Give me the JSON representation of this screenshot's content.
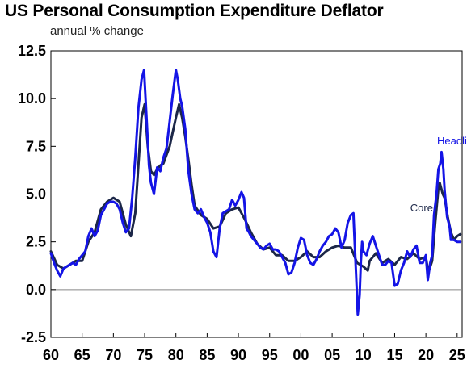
{
  "title": "US Personal Consumption Expenditure Deflator",
  "subtitle": "annual % change",
  "chart_data": {
    "type": "line",
    "xlim": [
      1960,
      2025.8
    ],
    "ylim": [
      -2.5,
      12.5
    ],
    "yticks": [
      "12.5",
      "10.0",
      "7.5",
      "5.0",
      "2.5",
      "0.0",
      "-2.5"
    ],
    "ytick_values": [
      12.5,
      10.0,
      7.5,
      5.0,
      2.5,
      0.0,
      -2.5
    ],
    "xticks": [
      "60",
      "65",
      "70",
      "75",
      "80",
      "85",
      "90",
      "95",
      "00",
      "05",
      "10",
      "15",
      "20",
      "25"
    ],
    "xtick_values": [
      1960,
      1965,
      1970,
      1975,
      1980,
      1985,
      1990,
      1995,
      2000,
      2005,
      2010,
      2015,
      2020,
      2025
    ],
    "zero_line": true,
    "grid": false,
    "series": [
      {
        "name": "Headline",
        "color": "#1414e6",
        "x": [
          1960.0,
          1960.5,
          1961.0,
          1961.5,
          1962.0,
          1962.5,
          1963.0,
          1963.5,
          1964.0,
          1964.5,
          1965.0,
          1965.5,
          1966.0,
          1966.5,
          1967.0,
          1967.5,
          1968.0,
          1968.5,
          1969.0,
          1969.5,
          1970.0,
          1970.5,
          1971.0,
          1971.5,
          1972.0,
          1972.5,
          1973.0,
          1973.5,
          1974.0,
          1974.5,
          1974.9,
          1975.3,
          1975.7,
          1976.0,
          1976.5,
          1977.0,
          1977.5,
          1978.0,
          1978.5,
          1979.0,
          1979.5,
          1980.0,
          1980.3,
          1980.7,
          1981.0,
          1981.5,
          1982.0,
          1982.5,
          1983.0,
          1983.5,
          1984.0,
          1984.5,
          1985.0,
          1985.5,
          1986.0,
          1986.5,
          1987.0,
          1987.5,
          1988.0,
          1988.5,
          1989.0,
          1989.5,
          1990.0,
          1990.5,
          1990.9,
          1991.3,
          1991.7,
          1992.0,
          1992.5,
          1993.0,
          1993.5,
          1994.0,
          1994.5,
          1995.0,
          1995.5,
          1996.0,
          1996.5,
          1997.0,
          1997.5,
          1998.0,
          1998.5,
          1999.0,
          1999.5,
          2000.0,
          2000.5,
          2001.0,
          2001.5,
          2002.0,
          2002.5,
          2003.0,
          2003.5,
          2004.0,
          2004.5,
          2005.0,
          2005.5,
          2006.0,
          2006.5,
          2007.0,
          2007.5,
          2008.0,
          2008.4,
          2008.8,
          2009.1,
          2009.4,
          2009.6,
          2009.8,
          2010.0,
          2010.5,
          2011.0,
          2011.5,
          2012.0,
          2012.5,
          2013.0,
          2013.5,
          2014.0,
          2014.5,
          2015.0,
          2015.5,
          2016.0,
          2016.5,
          2017.0,
          2017.5,
          2018.0,
          2018.5,
          2019.0,
          2019.5,
          2020.0,
          2020.3,
          2020.7,
          2021.0,
          2021.3,
          2021.7,
          2022.0,
          2022.3,
          2022.5,
          2022.8,
          2023.0,
          2023.4,
          2023.8,
          2024.0,
          2024.5,
          2025.0,
          2025.5
        ],
        "y": [
          1.9,
          1.4,
          1.0,
          0.7,
          1.1,
          1.2,
          1.3,
          1.4,
          1.3,
          1.6,
          1.8,
          2.0,
          2.8,
          3.2,
          2.8,
          3.1,
          3.9,
          4.2,
          4.5,
          4.6,
          4.6,
          4.5,
          4.2,
          3.5,
          3.0,
          3.2,
          4.8,
          6.9,
          9.5,
          11.0,
          11.5,
          9.0,
          6.5,
          5.6,
          5.0,
          6.4,
          6.2,
          6.9,
          7.4,
          8.8,
          10.2,
          11.5,
          11.0,
          10.0,
          9.6,
          8.4,
          6.2,
          5.0,
          4.2,
          4.0,
          4.2,
          3.8,
          3.5,
          3.0,
          2.0,
          1.7,
          3.2,
          4.0,
          4.1,
          4.2,
          4.7,
          4.4,
          4.7,
          5.1,
          4.8,
          3.2,
          3.0,
          2.8,
          2.6,
          2.4,
          2.2,
          2.1,
          2.3,
          2.4,
          2.1,
          2.1,
          2.0,
          1.7,
          1.4,
          0.8,
          0.9,
          1.4,
          2.2,
          2.7,
          2.6,
          1.8,
          1.4,
          1.3,
          1.6,
          2.0,
          2.3,
          2.5,
          2.8,
          2.9,
          3.2,
          3.0,
          2.2,
          2.6,
          3.5,
          3.9,
          4.0,
          1.0,
          -1.3,
          -0.3,
          1.5,
          2.5,
          2.0,
          1.8,
          2.4,
          2.8,
          2.3,
          1.8,
          1.3,
          1.3,
          1.5,
          1.4,
          0.2,
          0.3,
          1.0,
          1.4,
          2.0,
          1.7,
          2.1,
          2.3,
          1.4,
          1.4,
          1.8,
          0.5,
          1.4,
          1.8,
          3.9,
          5.0,
          6.3,
          6.6,
          7.2,
          6.3,
          5.2,
          3.8,
          3.3,
          2.6,
          2.6,
          2.5,
          2.5
        ]
      },
      {
        "name": "Core",
        "color": "#1c2748",
        "x": [
          1960.0,
          1961.0,
          1962.0,
          1963.0,
          1964.0,
          1965.0,
          1966.0,
          1967.0,
          1968.0,
          1969.0,
          1970.0,
          1971.0,
          1972.0,
          1972.8,
          1973.5,
          1974.0,
          1974.5,
          1975.0,
          1975.5,
          1976.0,
          1976.5,
          1977.0,
          1977.5,
          1978.0,
          1979.0,
          1980.0,
          1980.5,
          1981.0,
          1981.5,
          1982.0,
          1982.5,
          1983.0,
          1984.0,
          1985.0,
          1986.0,
          1987.0,
          1988.0,
          1989.0,
          1990.0,
          1991.0,
          1992.0,
          1993.0,
          1994.0,
          1995.0,
          1996.0,
          1997.0,
          1998.0,
          1999.0,
          2000.0,
          2001.0,
          2002.0,
          2003.0,
          2004.0,
          2005.0,
          2006.0,
          2007.0,
          2008.0,
          2009.0,
          2010.0,
          2010.7,
          2011.0,
          2012.0,
          2013.0,
          2014.0,
          2015.0,
          2016.0,
          2017.0,
          2018.0,
          2019.0,
          2020.0,
          2020.4,
          2021.0,
          2021.5,
          2022.0,
          2022.2,
          2022.7,
          2023.0,
          2023.5,
          2024.0,
          2024.5,
          2025.0,
          2025.5
        ],
        "y": [
          2.0,
          1.3,
          1.1,
          1.3,
          1.5,
          1.5,
          2.5,
          3.0,
          4.2,
          4.6,
          4.8,
          4.6,
          3.4,
          2.8,
          4.0,
          6.5,
          9.0,
          9.7,
          7.5,
          6.2,
          6.0,
          6.3,
          6.5,
          6.6,
          7.5,
          9.0,
          9.7,
          9.0,
          8.0,
          6.8,
          5.5,
          4.4,
          3.9,
          3.7,
          3.2,
          3.3,
          4.0,
          4.2,
          4.3,
          3.7,
          3.0,
          2.4,
          2.1,
          2.2,
          1.8,
          1.8,
          1.5,
          1.5,
          1.7,
          2.0,
          1.7,
          1.7,
          2.0,
          2.2,
          2.3,
          2.2,
          2.2,
          1.4,
          1.2,
          1.0,
          1.5,
          1.9,
          1.4,
          1.6,
          1.3,
          1.7,
          1.6,
          1.9,
          1.6,
          1.7,
          0.9,
          1.5,
          3.5,
          5.3,
          5.6,
          5.0,
          4.8,
          3.8,
          3.0,
          2.6,
          2.8,
          2.9
        ]
      }
    ]
  }
}
